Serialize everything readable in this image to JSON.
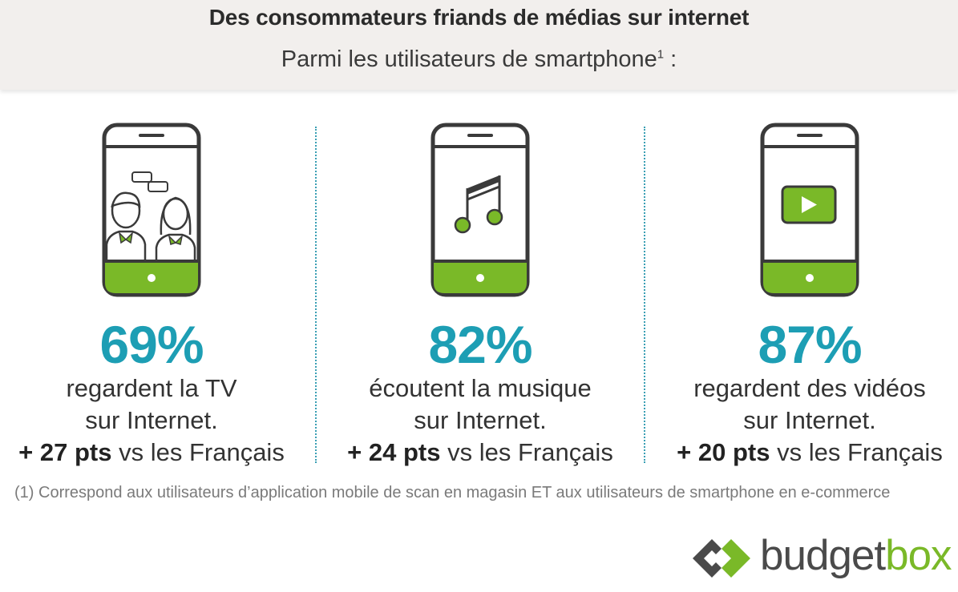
{
  "header": {
    "title": "Des consommateurs friands de médias sur internet",
    "subtitle": "Parmi les utilisateurs de smartphone",
    "subtitle_sup": "1",
    "subtitle_suffix": " :"
  },
  "columns": [
    {
      "icon": "tv-couple-icon",
      "percent": "69%",
      "line1": "regardent la TV",
      "line2": "sur Internet.",
      "delta": "+ 27 pts",
      "compare": " vs les Français"
    },
    {
      "icon": "music-note-icon",
      "percent": "82%",
      "line1": "écoutent la musique",
      "line2": "sur Internet.",
      "delta": "+ 24 pts",
      "compare": " vs les Français"
    },
    {
      "icon": "play-video-icon",
      "percent": "87%",
      "line1": "regardent des vidéos",
      "line2": "sur Internet.",
      "delta": "+ 20 pts",
      "compare": " vs les Français"
    }
  ],
  "footnote": "(1) Correspond aux utilisateurs d’application mobile de scan en magasin ET aux utilisateurs de smartphone en e-commerce",
  "logo": {
    "part1": "budget",
    "part2": "box",
    "icon": "budgetbox-diamond-logo"
  },
  "colors": {
    "accent_teal": "#1d9eb4",
    "accent_green": "#7ab928",
    "header_bg": "#f2efed"
  }
}
